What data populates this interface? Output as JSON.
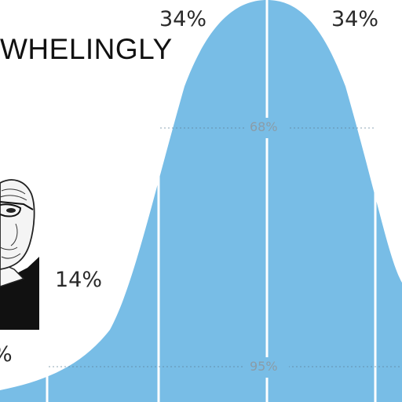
{
  "caption": "WHELINGLY",
  "bands": {
    "left_center": "34%",
    "right_center": "34%",
    "left_outer": "14%",
    "left_tail": "%"
  },
  "spans": {
    "one_sd": "68%",
    "two_sd": "95%"
  },
  "colors": {
    "curve_fill": "#78bde6",
    "divider": "#ffffff",
    "span_line": "#5d7f98"
  },
  "icons": {
    "meme_face": "wojak-face-icon"
  }
}
